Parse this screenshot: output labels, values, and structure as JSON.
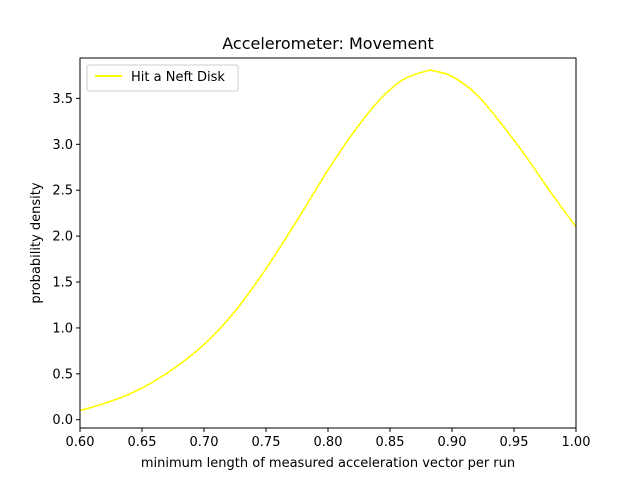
{
  "chart_data": {
    "type": "line",
    "title": "Accelerometer: Movement",
    "xlabel": "minimum length of measured acceleration vector per run",
    "ylabel": "probability density",
    "xlim": [
      0.6,
      1.0
    ],
    "ylim": [
      -0.09,
      3.94
    ],
    "xticks": [
      0.6,
      0.65,
      0.7,
      0.75,
      0.8,
      0.85,
      0.9,
      0.95,
      1.0
    ],
    "xtick_labels": [
      "0.60",
      "0.65",
      "0.70",
      "0.75",
      "0.80",
      "0.85",
      "0.90",
      "0.95",
      "1.00"
    ],
    "yticks": [
      0.0,
      0.5,
      1.0,
      1.5,
      2.0,
      2.5,
      3.0,
      3.5
    ],
    "ytick_labels": [
      "0.0",
      "0.5",
      "1.0",
      "1.5",
      "2.0",
      "2.5",
      "3.0",
      "3.5"
    ],
    "grid": false,
    "legend_position": "upper-left",
    "series": [
      {
        "name": "Hit a Neft Disk",
        "color": "#ffff00",
        "x": [
          0.6,
          0.62,
          0.64,
          0.66,
          0.68,
          0.7,
          0.72,
          0.74,
          0.76,
          0.78,
          0.8,
          0.82,
          0.84,
          0.86,
          0.88,
          0.885,
          0.9,
          0.92,
          0.94,
          0.96,
          0.98,
          1.0
        ],
        "y": [
          0.1,
          0.18,
          0.28,
          0.42,
          0.6,
          0.82,
          1.1,
          1.45,
          1.85,
          2.28,
          2.72,
          3.12,
          3.46,
          3.7,
          3.8,
          3.8,
          3.74,
          3.54,
          3.22,
          2.86,
          2.47,
          2.1
        ]
      }
    ]
  }
}
